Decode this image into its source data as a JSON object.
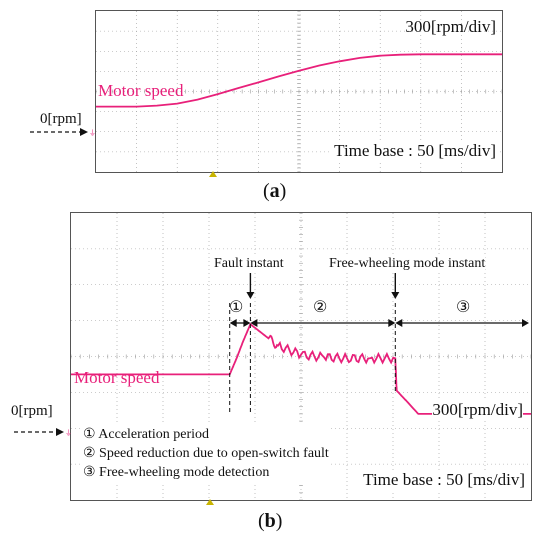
{
  "chart_data": [
    {
      "type": "line",
      "panel": "a",
      "caption": {
        "pre": "(",
        "letter": "a",
        "post": ")"
      },
      "scale_label": "300[rpm/div]",
      "time_base_label": "Time base : 50 [ms/div]",
      "series_label": "Motor speed",
      "zero_label": "0[rpm]",
      "divisions": {
        "x": 10,
        "y": 8
      },
      "series": [
        {
          "x": [
            0,
            1,
            1.5,
            2,
            2.5,
            3,
            3.5,
            4,
            4.5,
            5,
            5.5,
            6,
            6.5,
            7,
            7.5,
            8,
            10
          ],
          "y": [
            1.8,
            1.8,
            1.85,
            1.95,
            2.15,
            2.42,
            2.72,
            3.0,
            3.3,
            3.58,
            3.84,
            4.05,
            4.22,
            4.33,
            4.38,
            4.4,
            4.4
          ]
        }
      ],
      "xlim": [
        0,
        10
      ],
      "ylim": [
        -1.45,
        6.55
      ]
    },
    {
      "type": "line",
      "panel": "b",
      "caption": {
        "pre": "(",
        "letter": "b",
        "post": ")"
      },
      "scale_label": "300[rpm/div]",
      "time_base_label": "Time base : 50 [ms/div]",
      "series_label": "Motor speed",
      "zero_label": "0[rpm]",
      "divisions": {
        "x": 10,
        "y": 8
      },
      "annotations": {
        "fault_instant": "Fault instant",
        "free_wheeling_instant": "Free-wheeling mode instant",
        "region_1": "①",
        "region_2": "②",
        "region_3": "③"
      },
      "notes": [
        "① Acceleration period",
        "② Speed reduction due to open-switch fault",
        "③ Free-wheeling mode detection"
      ],
      "series": [
        {
          "x": [
            0,
            3.45,
            3.6,
            3.75,
            3.9,
            4.05,
            4.25,
            4.5,
            5.0,
            5.5,
            6.0,
            6.5,
            7.05,
            7.08,
            7.3,
            7.55,
            10
          ],
          "y": [
            1.5,
            1.5,
            1.95,
            2.45,
            2.9,
            2.75,
            2.55,
            2.3,
            2.05,
            1.98,
            1.95,
            1.95,
            1.95,
            1.05,
            0.75,
            0.4,
            0.4
          ]
        }
      ],
      "oscillation": {
        "x_start": 4.3,
        "x_end": 7.05,
        "amplitude": 0.12,
        "period": 0.18
      },
      "xlim": [
        0,
        10
      ],
      "ylim": [
        -2.0,
        6.0
      ]
    }
  ],
  "colors": {
    "trace": "#e8207a",
    "grid": "#9a9a9a",
    "ground_marker": "#e8207a",
    "trigger_marker": "#c8b400"
  }
}
